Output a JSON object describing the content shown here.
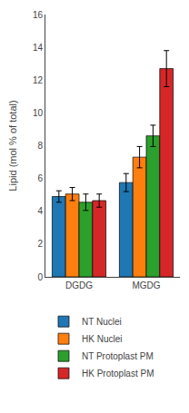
{
  "chart_data": {
    "type": "bar",
    "categories": [
      "DGDG",
      "MGDG"
    ],
    "series": [
      {
        "name": "NT Nuclei",
        "values": [
          4.9,
          5.75
        ],
        "errors": [
          0.35,
          0.55
        ]
      },
      {
        "name": "HK Nuclei",
        "values": [
          5.05,
          7.3
        ],
        "errors": [
          0.4,
          0.65
        ]
      },
      {
        "name": "NT Protoplast PM",
        "values": [
          4.55,
          8.6
        ],
        "errors": [
          0.5,
          0.65
        ]
      },
      {
        "name": "HK Protoplast PM",
        "values": [
          4.65,
          12.7
        ],
        "errors": [
          0.4,
          1.1
        ]
      }
    ],
    "ylabel": "Lipid (mol % of total)",
    "ylim": [
      0,
      16
    ],
    "yticks": [
      0,
      2,
      4,
      6,
      8,
      10,
      12,
      14,
      16
    ],
    "grid": false,
    "legend": "bottom"
  }
}
